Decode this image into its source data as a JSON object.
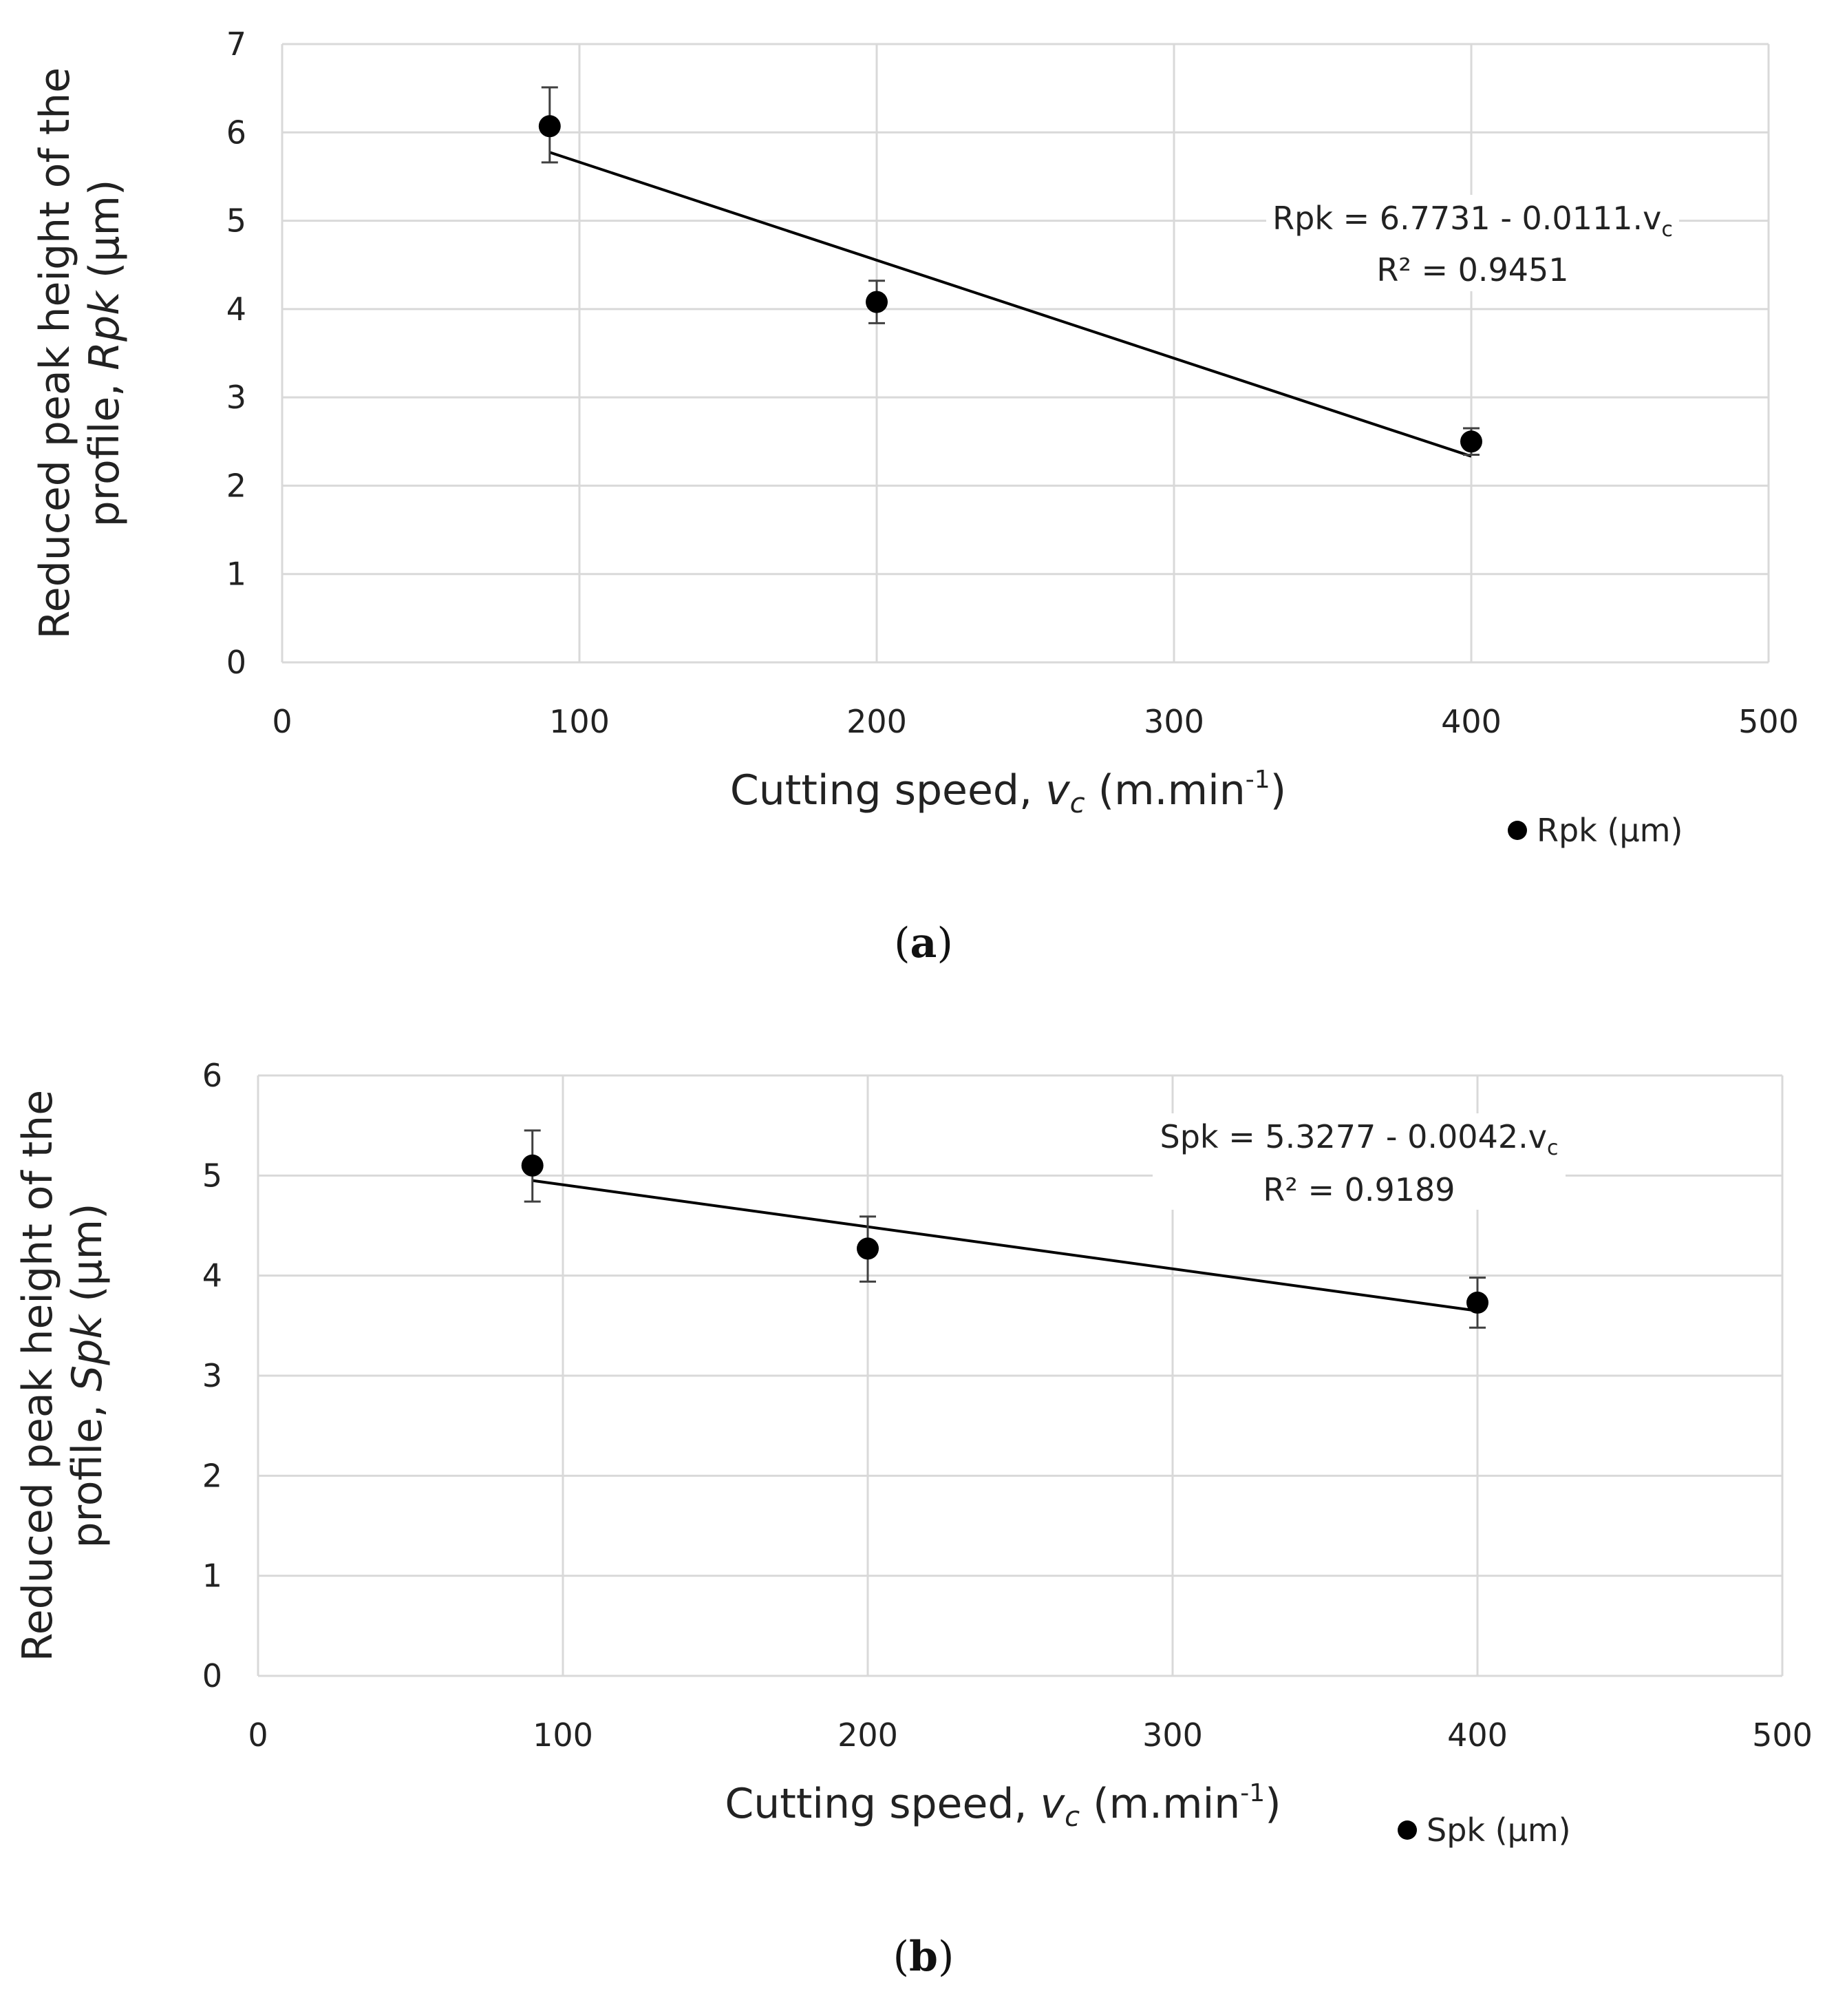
{
  "chart_data": [
    {
      "type": "scatter",
      "panel": "a",
      "caption": {
        "open": "(",
        "letter": "a",
        "close": ")"
      },
      "xlabel": {
        "prefix": "Cutting speed, ",
        "var": "v",
        "var_sub": "c",
        "unit_pre": " (m.min",
        "unit_sup": "-1",
        "unit_post": ")"
      },
      "ylabel": {
        "line1": "Reduced peak height of the",
        "line2_prefix": "profile, ",
        "line2_var": "Rpk",
        "line2_unit": " (µm)"
      },
      "xlim": [
        0,
        500
      ],
      "ylim": [
        0,
        7
      ],
      "xticks": [
        "0",
        "100",
        "200",
        "300",
        "400",
        "500"
      ],
      "yticks": [
        "0",
        "1",
        "2",
        "3",
        "4",
        "5",
        "6",
        "7"
      ],
      "grid": true,
      "series": [
        {
          "name": "Rpk (µm)",
          "x": [
            90,
            200,
            400
          ],
          "y": [
            6.07,
            4.08,
            2.5
          ],
          "err_low": [
            0.41,
            0.24,
            0.15
          ],
          "err_high": [
            0.44,
            0.24,
            0.15
          ],
          "color": "#000000"
        }
      ],
      "trendline": {
        "intercept": 6.7731,
        "slope": -0.0111,
        "x_range": [
          90,
          400
        ],
        "equation_main": "Rpk = 6.7731 - 0.0111.v",
        "equation_sub": "c",
        "r2_label": "R² = 0.9451"
      },
      "legend": {
        "label": "Rpk (µm)",
        "position": "bottom-right"
      }
    },
    {
      "type": "scatter",
      "panel": "b",
      "caption": {
        "open": "(",
        "letter": "b",
        "close": ")"
      },
      "xlabel": {
        "prefix": "Cutting speed, ",
        "var": "v",
        "var_sub": "c",
        "unit_pre": " (m.min",
        "unit_sup": "-1",
        "unit_post": ")"
      },
      "ylabel": {
        "line1": "Reduced peak height of the",
        "line2_prefix": "profile, ",
        "line2_var": "Spk",
        "line2_unit": " (µm)"
      },
      "xlim": [
        0,
        500
      ],
      "ylim": [
        0,
        6
      ],
      "xticks": [
        "0",
        "100",
        "200",
        "300",
        "400",
        "500"
      ],
      "yticks": [
        "0",
        "1",
        "2",
        "3",
        "4",
        "5",
        "6"
      ],
      "grid": true,
      "series": [
        {
          "name": "Spk (µm)",
          "x": [
            90,
            200,
            400
          ],
          "y": [
            5.1,
            4.27,
            3.73
          ],
          "err_low": [
            0.36,
            0.33,
            0.25
          ],
          "err_high": [
            0.35,
            0.32,
            0.25
          ],
          "color": "#000000"
        }
      ],
      "trendline": {
        "intercept": 5.3277,
        "slope": -0.0042,
        "x_range": [
          90,
          400
        ],
        "equation_main": "Spk = 5.3277 - 0.0042.v",
        "equation_sub": "c",
        "r2_label": "R² = 0.9189"
      },
      "legend": {
        "label": "Spk (µm)",
        "position": "bottom-right"
      }
    }
  ],
  "colors": {
    "grid": "#d9d9d9",
    "marker": "#000000",
    "errorbar": "#404040",
    "trendline": "#000000",
    "text": "#222222"
  }
}
